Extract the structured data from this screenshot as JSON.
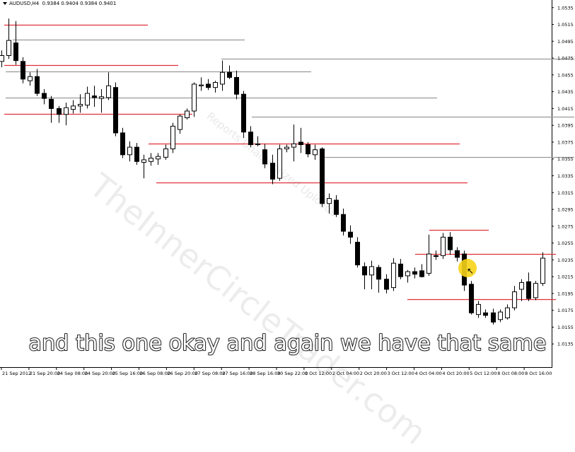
{
  "header": {
    "symbol": "AUDUSD,H4",
    "ohlc": "0.9384 0.9404 0.9384 0.9401"
  },
  "watermark": {
    "main": "TheInnerCircleTrader.com",
    "secondary": "Reports Unauthorized Uploads"
  },
  "caption": {
    "text": "and this one okay and again we have that same"
  },
  "colors": {
    "resistance_line": "#e0303a",
    "support_line": "#9a9a9a",
    "bull_candle": "#ffffff",
    "bear_candle": "#000000",
    "cursor_highlight": "#f7d417"
  },
  "chart_data": {
    "type": "candlestick",
    "title": "AUDUSD,H4",
    "price_labels": [
      "1.0535",
      "1.0515",
      "1.0495",
      "1.0475",
      "1.0455",
      "1.0435",
      "1.0415",
      "1.0395",
      "1.0375",
      "1.0355",
      "1.0335",
      "1.0315",
      "1.0295",
      "1.0275",
      "1.0255",
      "1.0235",
      "1.0215",
      "1.0195",
      "1.0175",
      "1.0155",
      "1.0135"
    ],
    "ylim": [
      1.0131,
      1.0539
    ],
    "time_labels": [
      "21 Sep 2012",
      "21 Sep 20:00",
      "24 Sep 08:00",
      "24 Sep 20:00",
      "25 Sep 16:00",
      "26 Sep 08:00",
      "26 Sep 20:00",
      "27 Sep 08:00",
      "27 Sep 16:00",
      "28 Sep 16:00",
      "30 Sep 22:00",
      "1 Oct 12:00",
      "2 Oct 04:00",
      "2 Oct 20:00",
      "3 Oct 12:00",
      "4 Oct 04:00",
      "4 Oct 20:00",
      "5 Oct 12:00",
      "8 Oct 08:00",
      "8 Oct 16:00"
    ],
    "candles": [
      {
        "o": 1.0471,
        "h": 1.0484,
        "l": 1.0464,
        "c": 1.0478
      },
      {
        "o": 1.0478,
        "h": 1.0522,
        "l": 1.0474,
        "c": 1.0496
      },
      {
        "o": 1.0493,
        "h": 1.0519,
        "l": 1.0467,
        "c": 1.0472
      },
      {
        "o": 1.0471,
        "h": 1.0476,
        "l": 1.0445,
        "c": 1.045
      },
      {
        "o": 1.0448,
        "h": 1.0458,
        "l": 1.0442,
        "c": 1.0453
      },
      {
        "o": 1.0453,
        "h": 1.0462,
        "l": 1.043,
        "c": 1.0433
      },
      {
        "o": 1.0433,
        "h": 1.0438,
        "l": 1.042,
        "c": 1.0427
      },
      {
        "o": 1.0426,
        "h": 1.043,
        "l": 1.0398,
        "c": 1.0415
      },
      {
        "o": 1.0415,
        "h": 1.0418,
        "l": 1.0398,
        "c": 1.0408
      },
      {
        "o": 1.0408,
        "h": 1.0422,
        "l": 1.0395,
        "c": 1.0416
      },
      {
        "o": 1.0414,
        "h": 1.0425,
        "l": 1.0409,
        "c": 1.0418
      },
      {
        "o": 1.0418,
        "h": 1.0432,
        "l": 1.041,
        "c": 1.042
      },
      {
        "o": 1.0419,
        "h": 1.0441,
        "l": 1.0415,
        "c": 1.0433
      },
      {
        "o": 1.043,
        "h": 1.0442,
        "l": 1.0417,
        "c": 1.0428
      },
      {
        "o": 1.0427,
        "h": 1.0438,
        "l": 1.041,
        "c": 1.0429
      },
      {
        "o": 1.0428,
        "h": 1.0458,
        "l": 1.0425,
        "c": 1.0442
      },
      {
        "o": 1.044,
        "h": 1.0446,
        "l": 1.0382,
        "c": 1.0386
      },
      {
        "o": 1.0386,
        "h": 1.0392,
        "l": 1.0356,
        "c": 1.036
      },
      {
        "o": 1.036,
        "h": 1.0376,
        "l": 1.0352,
        "c": 1.0369
      },
      {
        "o": 1.0369,
        "h": 1.0374,
        "l": 1.0348,
        "c": 1.0352
      },
      {
        "o": 1.0351,
        "h": 1.036,
        "l": 1.0332,
        "c": 1.0354
      },
      {
        "o": 1.0352,
        "h": 1.0362,
        "l": 1.0347,
        "c": 1.0356
      },
      {
        "o": 1.0355,
        "h": 1.0362,
        "l": 1.0348,
        "c": 1.0358
      },
      {
        "o": 1.0357,
        "h": 1.0372,
        "l": 1.0354,
        "c": 1.0367
      },
      {
        "o": 1.0367,
        "h": 1.0398,
        "l": 1.0362,
        "c": 1.0394
      },
      {
        "o": 1.039,
        "h": 1.0408,
        "l": 1.0385,
        "c": 1.0406
      },
      {
        "o": 1.0404,
        "h": 1.0415,
        "l": 1.0402,
        "c": 1.0412
      },
      {
        "o": 1.0412,
        "h": 1.0446,
        "l": 1.0405,
        "c": 1.0444
      },
      {
        "o": 1.0442,
        "h": 1.0452,
        "l": 1.0436,
        "c": 1.0443
      },
      {
        "o": 1.0444,
        "h": 1.045,
        "l": 1.0437,
        "c": 1.044
      },
      {
        "o": 1.044,
        "h": 1.0448,
        "l": 1.0434,
        "c": 1.0446
      },
      {
        "o": 1.0444,
        "h": 1.0472,
        "l": 1.0436,
        "c": 1.0458
      },
      {
        "o": 1.0458,
        "h": 1.0466,
        "l": 1.045,
        "c": 1.0452
      },
      {
        "o": 1.0452,
        "h": 1.046,
        "l": 1.0426,
        "c": 1.0432
      },
      {
        "o": 1.0432,
        "h": 1.0436,
        "l": 1.038,
        "c": 1.0387
      },
      {
        "o": 1.0387,
        "h": 1.0394,
        "l": 1.0369,
        "c": 1.0372
      },
      {
        "o": 1.0372,
        "h": 1.0382,
        "l": 1.037,
        "c": 1.0373
      },
      {
        "o": 1.0366,
        "h": 1.0373,
        "l": 1.0344,
        "c": 1.0349
      },
      {
        "o": 1.035,
        "h": 1.036,
        "l": 1.0325,
        "c": 1.0331
      },
      {
        "o": 1.0332,
        "h": 1.0372,
        "l": 1.0329,
        "c": 1.0367
      },
      {
        "o": 1.0367,
        "h": 1.0372,
        "l": 1.0363,
        "c": 1.0369
      },
      {
        "o": 1.0369,
        "h": 1.0396,
        "l": 1.0352,
        "c": 1.0373
      },
      {
        "o": 1.0375,
        "h": 1.0392,
        "l": 1.0362,
        "c": 1.0372
      },
      {
        "o": 1.0372,
        "h": 1.0375,
        "l": 1.0357,
        "c": 1.0361
      },
      {
        "o": 1.036,
        "h": 1.0372,
        "l": 1.0354,
        "c": 1.0366
      },
      {
        "o": 1.0367,
        "h": 1.0369,
        "l": 1.0298,
        "c": 1.0302
      },
      {
        "o": 1.0302,
        "h": 1.0314,
        "l": 1.029,
        "c": 1.0308
      },
      {
        "o": 1.0306,
        "h": 1.0312,
        "l": 1.0286,
        "c": 1.0289
      },
      {
        "o": 1.0289,
        "h": 1.0296,
        "l": 1.0264,
        "c": 1.0269
      },
      {
        "o": 1.0268,
        "h": 1.0276,
        "l": 1.0254,
        "c": 1.0262
      },
      {
        "o": 1.0256,
        "h": 1.0262,
        "l": 1.0226,
        "c": 1.0229
      },
      {
        "o": 1.0227,
        "h": 1.0232,
        "l": 1.02,
        "c": 1.0217
      },
      {
        "o": 1.0217,
        "h": 1.0234,
        "l": 1.02,
        "c": 1.0227
      },
      {
        "o": 1.0226,
        "h": 1.0229,
        "l": 1.0196,
        "c": 1.0212
      },
      {
        "o": 1.0212,
        "h": 1.0218,
        "l": 1.0195,
        "c": 1.02
      },
      {
        "o": 1.0202,
        "h": 1.0237,
        "l": 1.0198,
        "c": 1.0231
      },
      {
        "o": 1.023,
        "h": 1.0236,
        "l": 1.0212,
        "c": 1.0215
      },
      {
        "o": 1.0216,
        "h": 1.0223,
        "l": 1.0208,
        "c": 1.0221
      },
      {
        "o": 1.0221,
        "h": 1.0226,
        "l": 1.0213,
        "c": 1.0218
      },
      {
        "o": 1.0222,
        "h": 1.023,
        "l": 1.0214,
        "c": 1.0215
      },
      {
        "o": 1.0219,
        "h": 1.0265,
        "l": 1.0216,
        "c": 1.0242
      },
      {
        "o": 1.024,
        "h": 1.0246,
        "l": 1.0235,
        "c": 1.0239
      },
      {
        "o": 1.024,
        "h": 1.0267,
        "l": 1.0236,
        "c": 1.0262
      },
      {
        "o": 1.0262,
        "h": 1.0268,
        "l": 1.0241,
        "c": 1.0247
      },
      {
        "o": 1.0246,
        "h": 1.025,
        "l": 1.0233,
        "c": 1.0238
      },
      {
        "o": 1.0242,
        "h": 1.0246,
        "l": 1.0198,
        "c": 1.0205
      },
      {
        "o": 1.0206,
        "h": 1.021,
        "l": 1.017,
        "c": 1.0172
      },
      {
        "o": 1.017,
        "h": 1.0186,
        "l": 1.0166,
        "c": 1.0182
      },
      {
        "o": 1.0172,
        "h": 1.0176,
        "l": 1.0166,
        "c": 1.0169
      },
      {
        "o": 1.0172,
        "h": 1.0177,
        "l": 1.0158,
        "c": 1.0161
      },
      {
        "o": 1.0164,
        "h": 1.0176,
        "l": 1.0161,
        "c": 1.0173
      },
      {
        "o": 1.0166,
        "h": 1.0182,
        "l": 1.0164,
        "c": 1.0178
      },
      {
        "o": 1.0178,
        "h": 1.0204,
        "l": 1.0175,
        "c": 1.0197
      },
      {
        "o": 1.02,
        "h": 1.0212,
        "l": 1.0186,
        "c": 1.0208
      },
      {
        "o": 1.0209,
        "h": 1.022,
        "l": 1.0186,
        "c": 1.0189
      },
      {
        "o": 1.019,
        "h": 1.021,
        "l": 1.0187,
        "c": 1.0207
      },
      {
        "o": 1.0207,
        "h": 1.0244,
        "l": 1.0204,
        "c": 1.0237
      }
    ],
    "levels": [
      {
        "price": 1.0515,
        "color": "red",
        "from": 6,
        "to": 209
      },
      {
        "price": 1.0497,
        "color": "gray",
        "from": 18,
        "to": 346
      },
      {
        "price": 1.0467,
        "color": "red",
        "from": 6,
        "to": 252
      },
      {
        "price": 1.0459,
        "color": "gray",
        "from": 8,
        "to": 440
      },
      {
        "price": 1.0474,
        "color": "gray",
        "from": 313,
        "to": 812
      },
      {
        "price": 1.0428,
        "color": "gray",
        "from": 8,
        "to": 618
      },
      {
        "price": 1.0409,
        "color": "red",
        "from": 6,
        "to": 272
      },
      {
        "price": 1.0405,
        "color": "gray",
        "from": 356,
        "to": 812
      },
      {
        "price": 1.0373,
        "color": "red",
        "from": 210,
        "to": 650
      },
      {
        "price": 1.0357,
        "color": "gray",
        "from": 459,
        "to": 812
      },
      {
        "price": 1.0327,
        "color": "red",
        "from": 221,
        "to": 661
      },
      {
        "price": 1.0271,
        "color": "red",
        "from": 607,
        "to": 691
      },
      {
        "price": 1.0242,
        "color": "red",
        "from": 587,
        "to": 786
      },
      {
        "price": 1.0188,
        "color": "red",
        "from": 576,
        "to": 786
      }
    ],
    "grid": false,
    "legend": "none"
  }
}
